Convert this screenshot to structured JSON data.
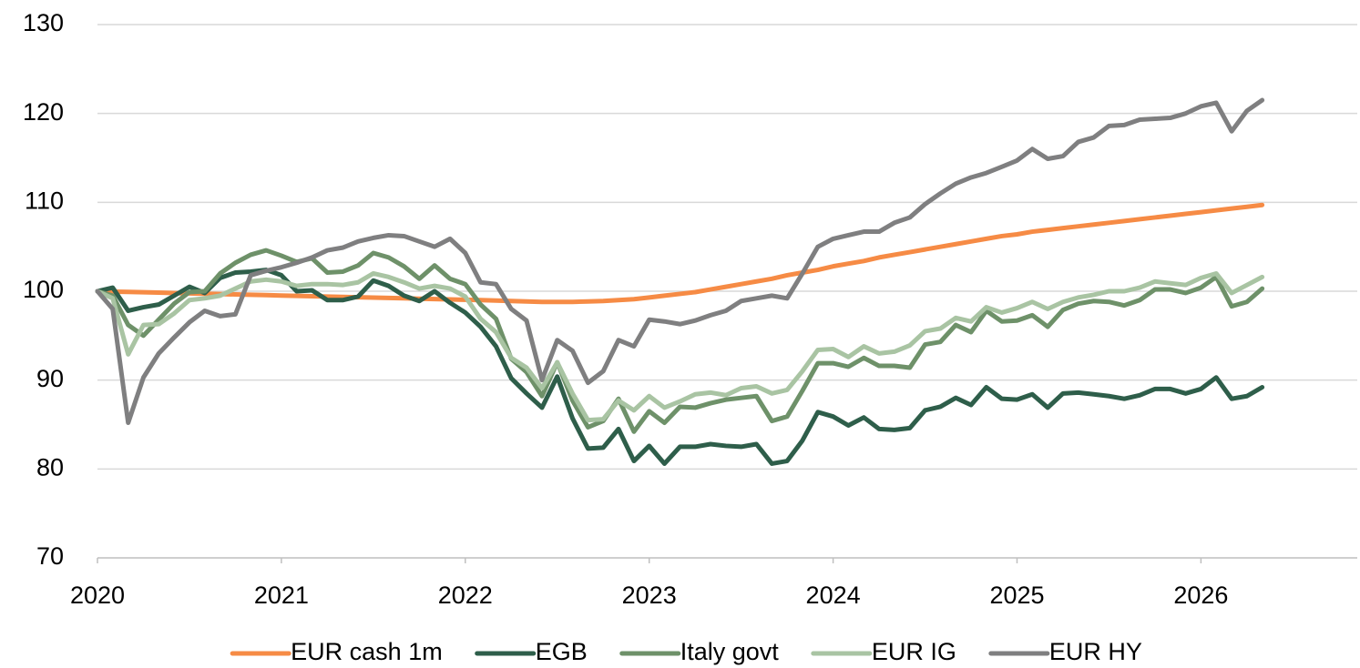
{
  "chart_data": {
    "type": "line",
    "x": [
      2020,
      2020.083,
      2020.167,
      2020.25,
      2020.333,
      2020.417,
      2020.5,
      2020.583,
      2020.667,
      2020.75,
      2020.833,
      2020.917,
      2021,
      2021.083,
      2021.167,
      2021.25,
      2021.333,
      2021.417,
      2021.5,
      2021.583,
      2021.667,
      2021.75,
      2021.833,
      2021.917,
      2022,
      2022.083,
      2022.167,
      2022.25,
      2022.333,
      2022.417,
      2022.5,
      2022.583,
      2022.667,
      2022.75,
      2022.833,
      2022.917,
      2023,
      2023.083,
      2023.167,
      2023.25,
      2023.333,
      2023.417,
      2023.5,
      2023.583,
      2023.667,
      2023.75,
      2023.833,
      2023.917,
      2024,
      2024.083,
      2024.167,
      2024.25,
      2024.333,
      2024.417,
      2024.5,
      2024.583,
      2024.667,
      2024.75,
      2024.833,
      2024.917,
      2025,
      2025.083,
      2025.167,
      2025.25,
      2025.333,
      2025.417,
      2025.5,
      2025.583,
      2025.667,
      2025.75,
      2025.833,
      2025.917,
      2026,
      2026.083,
      2026.167,
      2026.25,
      2026.333
    ],
    "series": [
      {
        "name": "EUR cash 1m",
        "color": "#f68b45",
        "values": [
          100,
          99.96,
          99.92,
          99.88,
          99.84,
          99.8,
          99.76,
          99.72,
          99.68,
          99.64,
          99.6,
          99.56,
          99.52,
          99.48,
          99.44,
          99.4,
          99.36,
          99.32,
          99.28,
          99.24,
          99.2,
          99.16,
          99.12,
          99.08,
          99.04,
          99.0,
          98.95,
          98.9,
          98.85,
          98.8,
          98.8,
          98.8,
          98.85,
          98.9,
          99.0,
          99.1,
          99.3,
          99.5,
          99.7,
          99.9,
          100.2,
          100.5,
          100.8,
          101.1,
          101.4,
          101.8,
          102.1,
          102.4,
          102.8,
          103.1,
          103.4,
          103.8,
          104.1,
          104.4,
          104.7,
          105.0,
          105.3,
          105.6,
          105.9,
          106.2,
          106.4,
          106.7,
          106.9,
          107.1,
          107.3,
          107.5,
          107.7,
          107.9,
          108.1,
          108.3,
          108.5,
          108.7,
          108.9,
          109.1,
          109.3,
          109.5,
          109.7
        ]
      },
      {
        "name": "EGB",
        "color": "#2e5e4a",
        "values": [
          100,
          100.4,
          97.8,
          98.2,
          98.5,
          99.5,
          100.5,
          99.8,
          101.5,
          102.1,
          102.2,
          102.4,
          101.8,
          100,
          100.1,
          99,
          99,
          99.4,
          101.2,
          100.6,
          99.5,
          98.9,
          100,
          98.7,
          97.6,
          96,
          93.8,
          90.2,
          88.5,
          86.9,
          90.4,
          85.7,
          82.3,
          82.4,
          84.5,
          80.9,
          82.6,
          80.6,
          82.5,
          82.5,
          82.8,
          82.6,
          82.5,
          82.8,
          80.6,
          80.9,
          83.2,
          86.4,
          85.9,
          84.9,
          85.8,
          84.5,
          84.4,
          84.6,
          86.6,
          87,
          88,
          87.2,
          89.2,
          87.9,
          87.8,
          88.4,
          86.9,
          88.5,
          88.6,
          88.4,
          88.2,
          87.9,
          88.3,
          89,
          89,
          88.5,
          89,
          90.3,
          87.9,
          88.2,
          89.2
        ]
      },
      {
        "name": "Italy govt",
        "color": "#6e9169",
        "values": [
          100,
          99.5,
          96.2,
          95,
          96.8,
          98.6,
          99.9,
          100,
          102,
          103.2,
          104.1,
          104.6,
          104,
          103.3,
          103.7,
          102.1,
          102.2,
          102.9,
          104.3,
          103.8,
          102.8,
          101.4,
          102.9,
          101.4,
          100.8,
          98.5,
          96.9,
          92.4,
          90.9,
          88.2,
          92,
          87.7,
          84.7,
          85.4,
          87.9,
          84.2,
          86.5,
          85.2,
          87,
          86.9,
          87.4,
          87.8,
          88,
          88.2,
          85.4,
          85.9,
          88.8,
          91.9,
          91.9,
          91.5,
          92.5,
          91.6,
          91.6,
          91.4,
          94,
          94.3,
          96.2,
          95.4,
          97.8,
          96.6,
          96.7,
          97.3,
          96,
          97.9,
          98.6,
          98.9,
          98.8,
          98.4,
          99,
          100.2,
          100.2,
          99.8,
          100.4,
          101.6,
          98.3,
          98.8,
          100.3
        ]
      },
      {
        "name": "EUR IG",
        "color": "#a9c4a3",
        "values": [
          100,
          99.2,
          92.9,
          96.2,
          96.3,
          97.5,
          99,
          99.2,
          99.5,
          100.3,
          101.1,
          101.3,
          101.1,
          100.6,
          100.8,
          100.8,
          100.7,
          101,
          102,
          101.6,
          101,
          100.3,
          100.6,
          100.3,
          99.4,
          96.9,
          95.4,
          92.5,
          91.4,
          89.1,
          92,
          88.5,
          85.5,
          85.6,
          87.7,
          86.6,
          88.2,
          86.9,
          87.6,
          88.4,
          88.6,
          88.3,
          89.1,
          89.3,
          88.5,
          88.9,
          91,
          93.4,
          93.5,
          92.6,
          93.8,
          93,
          93.2,
          93.9,
          95.5,
          95.8,
          97,
          96.6,
          98.2,
          97.6,
          98.1,
          98.8,
          98,
          98.8,
          99.3,
          99.6,
          100,
          100,
          100.4,
          101.1,
          100.9,
          100.7,
          101.5,
          102,
          99.8,
          100.7,
          101.6
        ]
      },
      {
        "name": "EUR HY",
        "color": "#7f7f80",
        "values": [
          100,
          98,
          85.2,
          90.3,
          93,
          94.8,
          96.5,
          97.8,
          97.2,
          97.4,
          101.8,
          102.3,
          102.7,
          103.2,
          103.8,
          104.6,
          104.9,
          105.6,
          106,
          106.3,
          106.2,
          105.6,
          105,
          105.9,
          104.3,
          101,
          100.8,
          98,
          96.7,
          90,
          94.5,
          93.3,
          89.7,
          91,
          94.5,
          93.8,
          96.8,
          96.6,
          96.3,
          96.7,
          97.3,
          97.8,
          98.9,
          99.2,
          99.5,
          99.2,
          102,
          105,
          105.9,
          106.3,
          106.7,
          106.7,
          107.7,
          108.3,
          109.8,
          111,
          112.1,
          112.8,
          113.3,
          114,
          114.7,
          116,
          114.9,
          115.2,
          116.8,
          117.3,
          118.6,
          118.7,
          119.3,
          119.4,
          119.5,
          120,
          120.8,
          121.2,
          118,
          120.3,
          121.5
        ]
      }
    ],
    "xlim": [
      2020,
      2026.85
    ],
    "xticks": [
      2020,
      2021,
      2022,
      2023,
      2024,
      2025,
      2026
    ],
    "ylim": [
      70,
      130
    ],
    "yticks": [
      70,
      80,
      90,
      100,
      110,
      120,
      130
    ],
    "grid": true,
    "legend": "bottom"
  }
}
